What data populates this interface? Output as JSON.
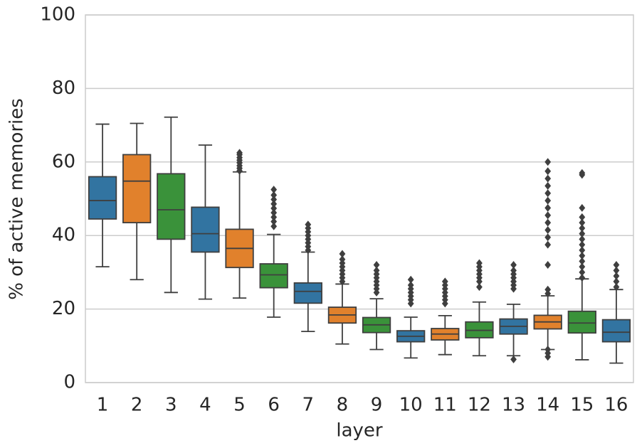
{
  "chart_data": {
    "type": "box",
    "x_label": "layer",
    "y_label": "% of active memories",
    "categories": [
      "1",
      "2",
      "3",
      "4",
      "5",
      "6",
      "7",
      "8",
      "9",
      "10",
      "11",
      "12",
      "13",
      "14",
      "15",
      "16"
    ],
    "boxes": [
      {
        "whislo": 31.5,
        "q1": 44.5,
        "med": 49.5,
        "q3": 56,
        "whishi": 70.3,
        "fliers": [],
        "color": "#3274a1"
      },
      {
        "whislo": 28,
        "q1": 43.5,
        "med": 54.8,
        "q3": 62,
        "whishi": 70.5,
        "fliers": [],
        "color": "#e1812c"
      },
      {
        "whislo": 24.5,
        "q1": 39,
        "med": 47,
        "q3": 56.8,
        "whishi": 72.2,
        "fliers": [],
        "color": "#3a923a"
      },
      {
        "whislo": 22.7,
        "q1": 35.5,
        "med": 40.5,
        "q3": 47.7,
        "whishi": 64.6,
        "fliers": [],
        "color": "#3274a1"
      },
      {
        "whislo": 23,
        "q1": 31.3,
        "med": 36.5,
        "q3": 41.7,
        "whishi": 57.3,
        "fliers": [
          57.6,
          58.3,
          59,
          59.8,
          60.5,
          61.2,
          62,
          62.5
        ],
        "color": "#e1812c"
      },
      {
        "whislo": 17.8,
        "q1": 25.8,
        "med": 29.3,
        "q3": 32.3,
        "whishi": 40.3,
        "fliers": [
          42.5,
          43.8,
          45,
          46.2,
          47.4,
          48.6,
          49.8,
          51,
          52.5
        ],
        "color": "#3a923a"
      },
      {
        "whislo": 13.9,
        "q1": 21.6,
        "med": 24.8,
        "q3": 27.1,
        "whishi": 35.5,
        "fliers": [
          36,
          37,
          38,
          39,
          40,
          41,
          42,
          43
        ],
        "color": "#3274a1"
      },
      {
        "whislo": 10.5,
        "q1": 16.2,
        "med": 18.4,
        "q3": 20.5,
        "whishi": 26.8,
        "fliers": [
          27.5,
          28.5,
          29.5,
          30.5,
          31.5,
          32.5,
          33.5,
          35
        ],
        "color": "#e1812c"
      },
      {
        "whislo": 9,
        "q1": 13.6,
        "med": 15.7,
        "q3": 17.7,
        "whishi": 22.8,
        "fliers": [
          24.5,
          25.5,
          26.5,
          27.5,
          28.5,
          29.5,
          30.5,
          32
        ],
        "color": "#3a923a"
      },
      {
        "whislo": 6.7,
        "q1": 11.1,
        "med": 12.6,
        "q3": 14.1,
        "whishi": 17.8,
        "fliers": [
          21.5,
          22.5,
          23.5,
          24.5,
          25.5,
          26.5,
          28
        ],
        "color": "#3274a1"
      },
      {
        "whislo": 7.6,
        "q1": 11.6,
        "med": 13.2,
        "q3": 14.7,
        "whishi": 18.2,
        "fliers": [
          21.5,
          22.5,
          23.5,
          24.5,
          25.5,
          26.5,
          27.5
        ],
        "color": "#e1812c"
      },
      {
        "whislo": 7.3,
        "q1": 12.2,
        "med": 14.2,
        "q3": 16.5,
        "whishi": 21.9,
        "fliers": [
          26,
          27.5,
          28.5,
          29.5,
          30.5,
          31.5,
          32.5
        ],
        "color": "#3a923a"
      },
      {
        "whislo": 7.3,
        "q1": 13.2,
        "med": 15.3,
        "q3": 17.3,
        "whishi": 21.3,
        "fliers": [
          6.3,
          25.5,
          26.5,
          27.5,
          28.5,
          29.5,
          30.5,
          32
        ],
        "color": "#3274a1"
      },
      {
        "whislo": 9,
        "q1": 14.6,
        "med": 16.5,
        "q3": 18.3,
        "whishi": 23.6,
        "fliers": [
          7,
          8,
          9,
          24.2,
          25.3,
          32,
          37.5,
          39.5,
          41.5,
          43.5,
          45.5,
          47.5,
          49.5,
          51.5,
          53.5,
          55.5,
          57.5,
          60
        ],
        "color": "#e1812c"
      },
      {
        "whislo": 6.2,
        "q1": 13.5,
        "med": 16.2,
        "q3": 19.4,
        "whishi": 28.2,
        "fliers": [
          28.5,
          30,
          31.5,
          33,
          34.5,
          36,
          37.5,
          39,
          40.5,
          42,
          43.5,
          45,
          47.5,
          56.5,
          57
        ],
        "color": "#3a923a"
      },
      {
        "whislo": 5.3,
        "q1": 11.1,
        "med": 13.7,
        "q3": 17.1,
        "whishi": 25.3,
        "fliers": [
          26,
          27.5,
          29,
          30.5,
          32
        ],
        "color": "#3274a1"
      }
    ],
    "ylim": [
      0,
      100
    ],
    "yticks": [
      0,
      20,
      40,
      60,
      80,
      100
    ],
    "grid": true
  }
}
